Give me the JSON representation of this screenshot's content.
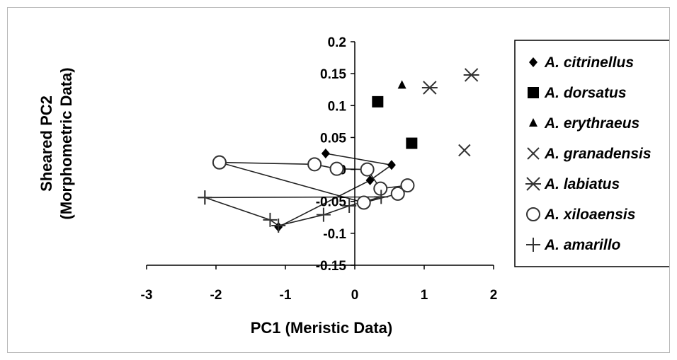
{
  "chart_data": {
    "type": "scatter",
    "title": "",
    "xlabel": "PC1 (Meristic Data)",
    "ylabel": "Sheared PC2",
    "ylabel_line2": "(Morphometric Data)",
    "xlim": [
      -3,
      2
    ],
    "ylim": [
      -0.15,
      0.2
    ],
    "xticks": [
      -3,
      -2,
      -1,
      0,
      1,
      2
    ],
    "yticks": [
      0.2,
      0.15,
      0.1,
      0.05,
      0,
      -0.05,
      -0.1,
      -0.15
    ],
    "ytick_labels": [
      "0.2",
      "0.15",
      "0.1",
      "0.05",
      "0",
      "-0.05",
      "-0.1",
      "-0.15"
    ],
    "xtick_labels": [
      "-3",
      "-2",
      "-1",
      "0",
      "1",
      "2"
    ],
    "grid": false,
    "legend_position": "right",
    "series": [
      {
        "name": "A. citrinellus",
        "marker": "diamond",
        "connected": true,
        "points": [
          [
            -0.42,
            0.025
          ],
          [
            0.53,
            0.007
          ],
          [
            0.22,
            -0.017
          ],
          [
            -1.1,
            -0.09
          ]
        ]
      },
      {
        "name": "A. dorsatus",
        "marker": "square",
        "connected": false,
        "points": [
          [
            0.33,
            0.106
          ],
          [
            0.82,
            0.041
          ]
        ]
      },
      {
        "name": "A. erythraeus",
        "marker": "triangle",
        "connected": false,
        "points": [
          [
            0.68,
            0.132
          ]
        ]
      },
      {
        "name": "A. granadensis",
        "marker": "x",
        "connected": false,
        "points": [
          [
            1.58,
            0.03
          ]
        ]
      },
      {
        "name": "A. labiatus",
        "marker": "asterisk",
        "connected": false,
        "points": [
          [
            1.08,
            0.128
          ],
          [
            1.68,
            0.148
          ]
        ]
      },
      {
        "name": "A. xiloaensis",
        "marker": "circle",
        "connected": true,
        "points": [
          [
            -1.95,
            0.011
          ],
          [
            -0.58,
            0.008
          ],
          [
            -0.26,
            0.001
          ],
          [
            0.18,
            0.0
          ],
          [
            0.37,
            -0.03
          ],
          [
            0.76,
            -0.025
          ],
          [
            0.62,
            -0.038
          ],
          [
            0.13,
            -0.052
          ],
          [
            -1.95,
            0.011
          ]
        ]
      },
      {
        "name": "A. amarillo",
        "marker": "plus",
        "connected": true,
        "points": [
          [
            -2.16,
            -0.044
          ],
          [
            0.38,
            -0.043
          ],
          [
            -0.08,
            -0.057
          ],
          [
            -0.45,
            -0.071
          ],
          [
            -1.1,
            -0.088
          ],
          [
            -1.22,
            -0.079
          ],
          [
            -2.16,
            -0.044
          ]
        ]
      }
    ]
  }
}
